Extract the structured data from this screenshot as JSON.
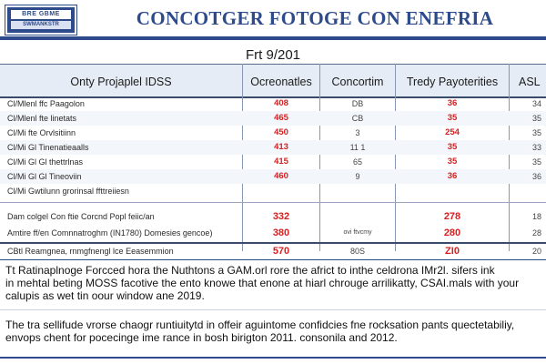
{
  "header": {
    "logo_top": "BRE GBME",
    "logo_bottom": "SWMANKSTR",
    "title": "CONCOTGER FOTOGE CON ENEFRIA"
  },
  "subtitle": "Frt 9/201",
  "table": {
    "columns": [
      "Onty Projaplel IDSS",
      "Ocreonatles",
      "Concortim",
      "Tredy Payoterities",
      "ASL"
    ],
    "group1": [
      {
        "label": "Cl/Mlenl ffc Paagolon",
        "c1": "408",
        "c2": "DB",
        "c3": "36",
        "c4": "34"
      },
      {
        "label": "Cl/Mlenl fte linetats",
        "c1": "465",
        "c2": "CB",
        "c3": "35",
        "c4": "35"
      },
      {
        "label": "Cl/Mi fte Orvlsitiinn",
        "c1": "450",
        "c2": "3",
        "c3": "254",
        "c4": "35"
      },
      {
        "label": "Cl/Mi Gl Tinenatieaalls",
        "c1": "413",
        "c2": "11 1",
        "c3": "35",
        "c4": "33"
      },
      {
        "label": "Cl/Mi Gl Gl thettrlnas",
        "c1": "415",
        "c2": "65",
        "c3": "35",
        "c4": "35"
      },
      {
        "label": "Cl/Mi Gl Gl Tineoviin",
        "c1": "460",
        "c2": "9",
        "c3": "36",
        "c4": "36"
      },
      {
        "label": "Cl/Mi Gwtilunn grorinsal ffttreiiesn",
        "c1": "",
        "c2": "",
        "c3": "",
        "c4": ""
      }
    ],
    "group2": [
      {
        "label": "Dam colgel Con ftie Corcnd Popl feiic/an",
        "c1": "332",
        "c2": "",
        "c3": "278",
        "c4": "18"
      },
      {
        "label": "Amtire ff/en Comnnatroghm  (IN1780) Domesies gencoe)",
        "c1": "380",
        "c2": "ovi ftvcmy",
        "c3": "280",
        "c4": "28"
      }
    ],
    "total": {
      "label": "CBtl Reamgnea, rnmgfnengl lce Eeasemmion",
      "c1": "570",
      "c2": "80S",
      "c3": "ZI0",
      "c4": "20"
    }
  },
  "paragraph1": [
    "Tt Ratinaplnoge Forcced hora the Nuthtons a GAM.orl rore the africt to inthe celdrona IMr2l. sifers ink",
    "in mehtal beting MOSS facotive the ento knowe that enone at hiarl chrouge arrilikatty, CSAI.mals with your",
    "calupis as wet tin oour window ane 2019."
  ],
  "paragraph2": [
    "The tra sellifude vrorse chaogr runtiuitytd in offeir aguintome confidcies fne rocksation pants quectetabiliy,",
    "envops chent for pocecinge ime rance in bosh birigton 2011. consonila and 2012."
  ]
}
